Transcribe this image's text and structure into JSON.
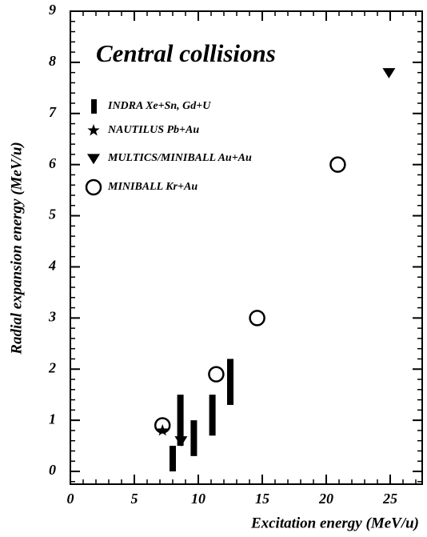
{
  "chart_data": {
    "type": "scatter",
    "title": "Central collisions",
    "x_label": "Excitation energy (MeV/u)",
    "y_label": "Radial expansion energy (MeV/u)",
    "xlim": [
      0,
      27.5
    ],
    "ylim": [
      -0.25,
      9
    ],
    "xticks": [
      0,
      5,
      10,
      15,
      20,
      25
    ],
    "yticks": [
      0,
      1,
      2,
      3,
      4,
      5,
      6,
      7,
      8,
      9
    ],
    "series": [
      {
        "name": "INDRA Xe+Sn, Gd+U",
        "marker": "bar",
        "color": "#000000",
        "x": [
          8.0,
          8.6,
          9.65,
          11.1,
          12.5
        ],
        "low": [
          0,
          0.5,
          0.3,
          0.7,
          1.3
        ],
        "high": [
          0.5,
          1.5,
          1.0,
          1.5,
          2.2
        ]
      },
      {
        "name": "NAUTILUS Pb+Au",
        "marker": "star",
        "color": "#000000",
        "x": [
          7.2
        ],
        "values": [
          0.8
        ]
      },
      {
        "name": "MULTICS/MINIBALL Au+Au",
        "marker": "triangle-down",
        "color": "#000000",
        "x": [
          8.65,
          24.9
        ],
        "values": [
          0.6,
          7.8
        ]
      },
      {
        "name": "MINIBALL Kr+Au",
        "marker": "circle",
        "color": "#000000",
        "x": [
          7.2,
          11.4,
          14.6,
          20.9
        ],
        "values": [
          0.9,
          1.9,
          3.0,
          6.0
        ]
      }
    ]
  }
}
